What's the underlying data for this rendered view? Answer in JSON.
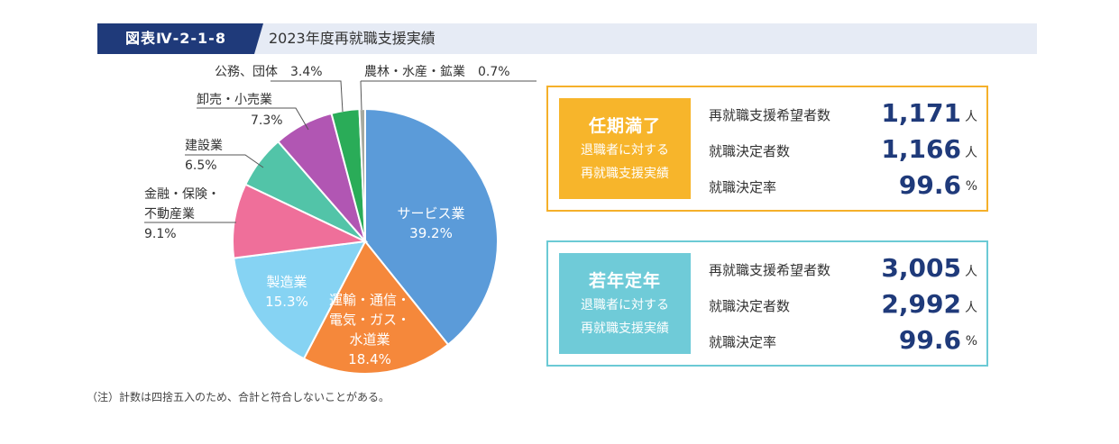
{
  "header": {
    "tag": "図表Ⅳ-2-1-8",
    "title": "2023年度再就職支援実績"
  },
  "chart_data": {
    "type": "pie",
    "title": "",
    "slices": [
      {
        "label": "サービス業",
        "value": 39.2,
        "value_text": "39.2%",
        "color": "#5b9bd9"
      },
      {
        "label": "運輸・通信・電気・ガス・水道業",
        "value": 18.4,
        "value_text": "18.4%",
        "color": "#f5883b"
      },
      {
        "label": "製造業",
        "value": 15.3,
        "value_text": "15.3%",
        "color": "#86d3f3"
      },
      {
        "label": "金融・保険・不動産業",
        "value": 9.1,
        "value_text": "9.1%",
        "color": "#ef6f9a"
      },
      {
        "label": "建設業",
        "value": 6.5,
        "value_text": "6.5%",
        "color": "#52c4a8"
      },
      {
        "label": "卸売・小売業",
        "value": 7.3,
        "value_text": "7.3%",
        "color": "#b156b3"
      },
      {
        "label": "公務、団体",
        "value": 3.4,
        "value_text": "3.4%",
        "color": "#2aac58"
      },
      {
        "label": "農林・水産・鉱業",
        "value": 0.7,
        "value_text": "0.7%",
        "color": "#a7aaa0"
      }
    ],
    "label_lines": {
      "transport": [
        "運輸・通信・",
        "電気・ガス・",
        "水道業"
      ],
      "finance": [
        "金融・保険・",
        "不動産業"
      ]
    },
    "outside_labels": {
      "public": "公務、団体　3.4%",
      "agri": "農林・水産・鉱業　0.7%"
    }
  },
  "boxes": [
    {
      "title": "任期満了",
      "sub1": "退職者に対する",
      "sub2": "再就職支援実績",
      "rows": [
        {
          "label": "再就職支援希望者数",
          "value": "1,171",
          "unit": "人"
        },
        {
          "label": "就職決定者数",
          "value": "1,166",
          "unit": "人"
        },
        {
          "label": "就職決定率",
          "value": "99.6",
          "unit": "%"
        }
      ]
    },
    {
      "title": "若年定年",
      "sub1": "退職者に対する",
      "sub2": "再就職支援実績",
      "rows": [
        {
          "label": "再就職支援希望者数",
          "value": "3,005",
          "unit": "人"
        },
        {
          "label": "就職決定者数",
          "value": "2,992",
          "unit": "人"
        },
        {
          "label": "就職決定率",
          "value": "99.6",
          "unit": "%"
        }
      ]
    }
  ],
  "note": "（注）計数は四捨五入のため、合計と符合しないことがある。"
}
